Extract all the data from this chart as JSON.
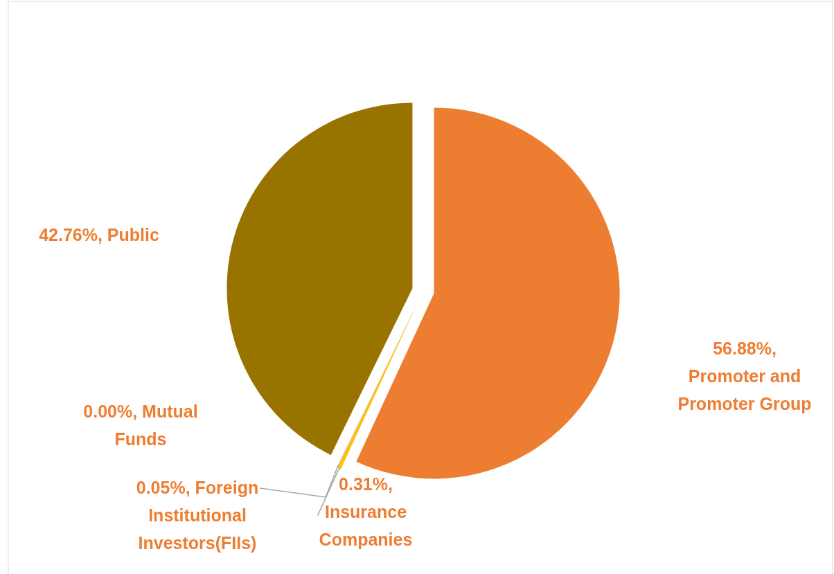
{
  "chart_data": {
    "type": "pie",
    "categories": [
      "Promoter and Promoter Group",
      "Insurance Companies",
      "Foreign Institutional Investors(FIIs)",
      "Mutual Funds",
      "Public"
    ],
    "values": [
      56.88,
      0.31,
      0.05,
      0.0,
      42.76
    ],
    "value_labels": [
      "56.88%,",
      "0.31%,",
      "0.05%,",
      "0.00%,",
      "42.76%,"
    ],
    "colors": [
      "#ed7d31",
      "#ffc000",
      "#a5a5a5",
      "#5b9bd5",
      "#997300"
    ]
  }
}
